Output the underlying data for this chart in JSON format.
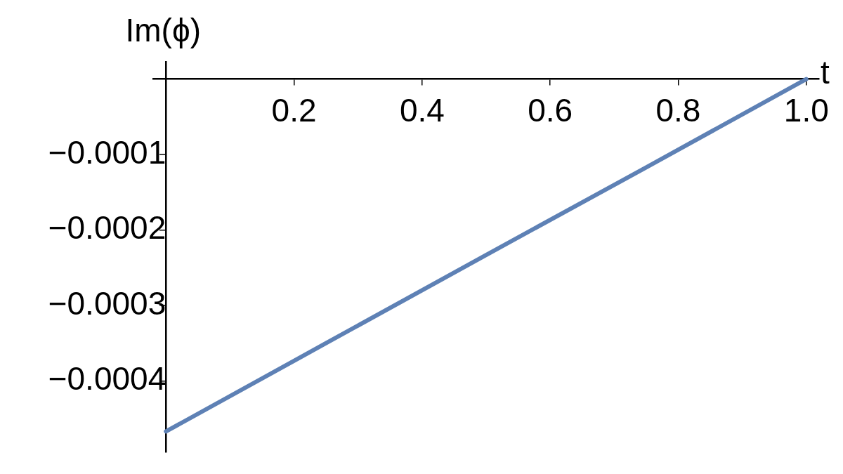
{
  "chart_data": {
    "type": "line",
    "xlabel": "t",
    "ylabel": "Im(ϕ)",
    "x": [
      0,
      0.25,
      0.5,
      0.75,
      1
    ],
    "series": [
      {
        "color": "#5e81b5",
        "values": [
          -0.000467,
          -0.00035,
          -0.000233,
          -0.000117,
          0
        ]
      }
    ],
    "xlim": [
      -0.02,
      1.02
    ],
    "xticks": [
      0.2,
      0.4,
      0.6,
      0.8,
      {
        "value": 1,
        "label": "1.0"
      }
    ],
    "ylim": [
      -0.000494,
      2.3e-05
    ],
    "yticks": [
      {
        "value": -0.0001,
        "label": "−0.0001"
      },
      {
        "value": -0.0002,
        "label": "−0.0002"
      },
      {
        "value": -0.0003,
        "label": "−0.0003"
      },
      {
        "value": -0.0004,
        "label": "−0.0004"
      }
    ],
    "grid": false,
    "legend": false,
    "marker": "none",
    "line_style": "solid"
  }
}
